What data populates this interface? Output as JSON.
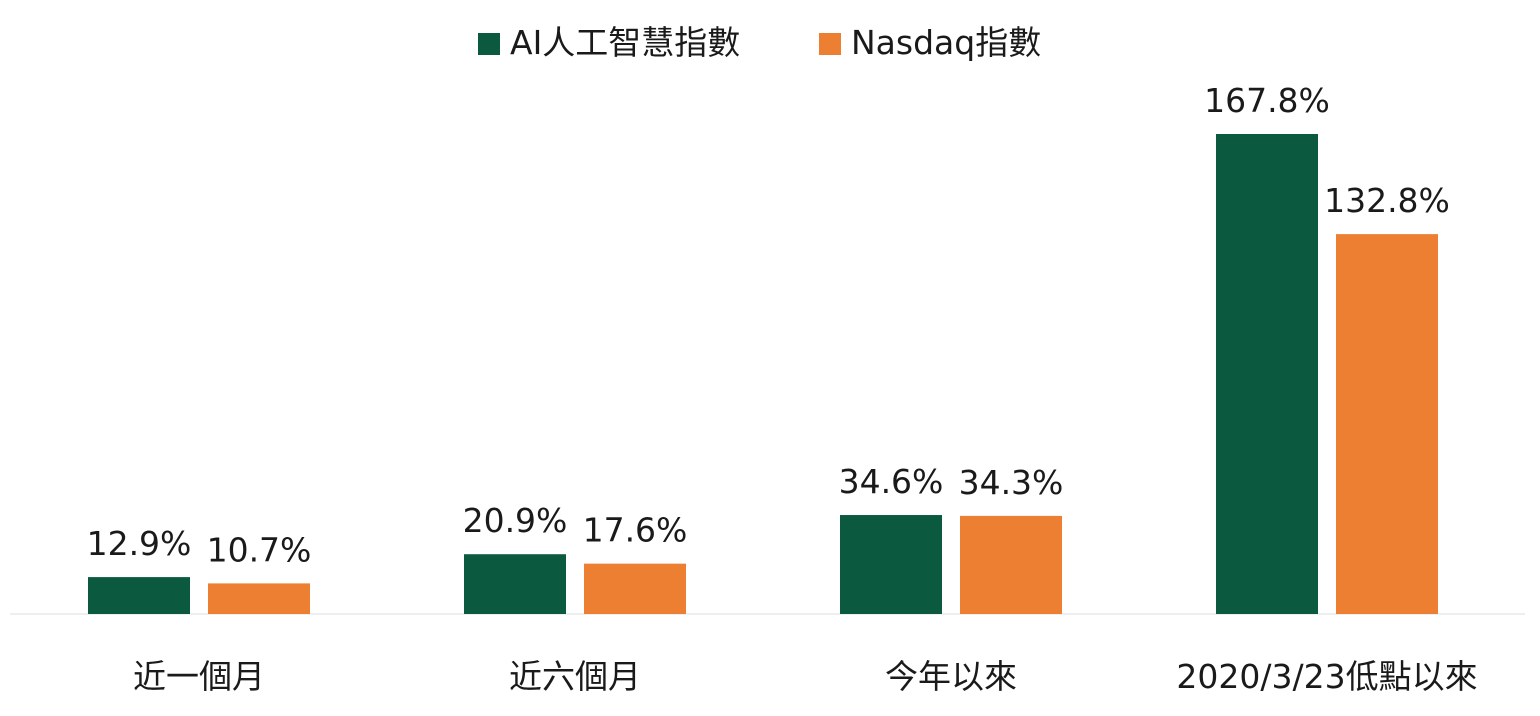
{
  "chart_data": {
    "type": "bar",
    "categories": [
      "近一個月",
      "近六個月",
      "今年以來",
      "2020/3/23低點以來"
    ],
    "series": [
      {
        "name": "AI人工智慧指數",
        "values": [
          12.9,
          20.9,
          34.6,
          167.8
        ],
        "labels": [
          "12.9%",
          "20.9%",
          "34.6%",
          "167.8%"
        ],
        "color": "#0b5a40"
      },
      {
        "name": "Nasdaq指數",
        "values": [
          10.7,
          17.6,
          34.3,
          132.8
        ],
        "labels": [
          "10.7%",
          "17.6%",
          "34.3%",
          "132.8%"
        ],
        "color": "#ed7f33"
      }
    ],
    "ylim": [
      0,
      180
    ],
    "grid": false,
    "legend_position": "top-center",
    "value_labels": true
  }
}
